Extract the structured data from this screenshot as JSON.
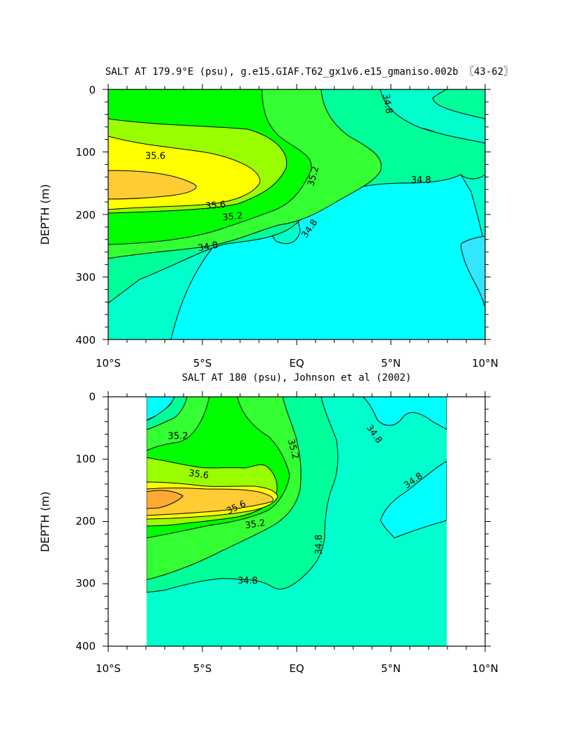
{
  "chart_data": [
    {
      "type": "contour",
      "title": "SALT AT 179.9°E (psu), g.e15.GIAF.T62_gx1v6.e15_gmaniso.002b 〖43-62〗",
      "ylabel": "DEPTH (m)",
      "xlabel": "",
      "x_ticks": [
        "10°S",
        "5°S",
        "EQ",
        "5°N",
        "10°N"
      ],
      "y_ticks": [
        "0",
        "100",
        "200",
        "300",
        "400"
      ],
      "xlim": [
        -10,
        10
      ],
      "ylim": [
        0,
        400
      ],
      "contour_labels": [
        {
          "text": "35.6",
          "x": -7.5,
          "y": 107,
          "rot": 0
        },
        {
          "text": "35.6",
          "x": -4.3,
          "y": 186,
          "rot": -5
        },
        {
          "text": "35.2",
          "x": -3.4,
          "y": 204,
          "rot": -6
        },
        {
          "text": "34.8",
          "x": -4.7,
          "y": 252,
          "rot": -10
        },
        {
          "text": "35.2",
          "x": 0.9,
          "y": 139,
          "rot": -75
        },
        {
          "text": "34.8",
          "x": 0.7,
          "y": 223,
          "rot": -55
        },
        {
          "text": "34.8",
          "x": 4.8,
          "y": 23,
          "rot": 80
        },
        {
          "text": "34.8",
          "x": 6.6,
          "y": 146,
          "rot": 0
        }
      ]
    },
    {
      "type": "contour",
      "title": "SALT AT 180 (psu), Johnson et al (2002)",
      "ylabel": "DEPTH (m)",
      "xlabel": "",
      "x_ticks": [
        "10°S",
        "5°S",
        "EQ",
        "5°N",
        "10°N"
      ],
      "y_ticks": [
        "0",
        "100",
        "200",
        "300",
        "400"
      ],
      "xlim": [
        -10,
        10
      ],
      "ylim": [
        0,
        400
      ],
      "data_xlim": [
        -8,
        8
      ],
      "contour_labels": [
        {
          "text": "35.2",
          "x": -6.3,
          "y": 64,
          "rot": 0
        },
        {
          "text": "35.6",
          "x": -5.2,
          "y": 125,
          "rot": 8
        },
        {
          "text": "35.6",
          "x": -3.2,
          "y": 178,
          "rot": -25
        },
        {
          "text": "35.2",
          "x": -2.2,
          "y": 205,
          "rot": -8
        },
        {
          "text": "35.2",
          "x": -0.2,
          "y": 84,
          "rot": 75
        },
        {
          "text": "34.8",
          "x": 4.1,
          "y": 60,
          "rot": 55
        },
        {
          "text": "34.8",
          "x": 1.2,
          "y": 237,
          "rot": -90
        },
        {
          "text": "34.8",
          "x": 6.2,
          "y": 135,
          "rot": -35
        },
        {
          "text": "34.8",
          "x": -2.6,
          "y": 296,
          "rot": 0
        }
      ]
    }
  ]
}
